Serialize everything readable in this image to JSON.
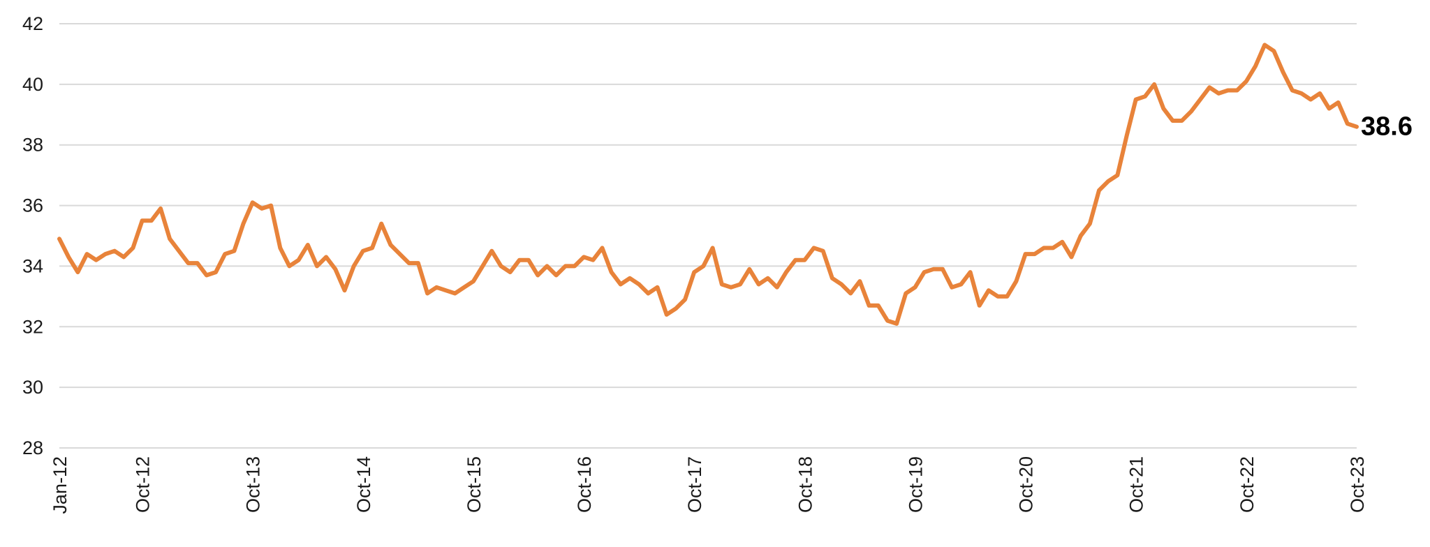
{
  "chart_data": {
    "type": "line",
    "title": "",
    "xlabel": "",
    "ylabel": "",
    "ylim": [
      28,
      42
    ],
    "y_ticks": [
      "28",
      "30",
      "32",
      "34",
      "36",
      "38",
      "40",
      "42"
    ],
    "x_tick_labels": [
      "Jan-12",
      "Oct-12",
      "Oct-13",
      "Oct-14",
      "Oct-15",
      "Oct-16",
      "Oct-17",
      "Oct-18",
      "Oct-19",
      "Oct-20",
      "Oct-21",
      "Oct-22",
      "Oct-23"
    ],
    "grid": true,
    "line_color": "#E8833A",
    "end_label": "38.6",
    "series": [
      {
        "name": "",
        "x_start": "Jan-12",
        "frequency": "monthly",
        "values": [
          34.9,
          34.3,
          33.8,
          34.4,
          34.2,
          34.4,
          34.5,
          34.3,
          34.6,
          35.5,
          35.5,
          35.9,
          34.9,
          34.5,
          34.1,
          34.1,
          33.7,
          33.8,
          34.4,
          34.5,
          35.4,
          36.1,
          35.9,
          36.0,
          34.6,
          34.0,
          34.2,
          34.7,
          34.0,
          34.3,
          33.9,
          33.2,
          34.0,
          34.5,
          34.6,
          35.4,
          34.7,
          34.4,
          34.1,
          34.1,
          33.1,
          33.3,
          33.2,
          33.1,
          33.3,
          33.5,
          34.0,
          34.5,
          34.0,
          33.8,
          34.2,
          34.2,
          33.7,
          34.0,
          33.7,
          34.0,
          34.0,
          34.3,
          34.2,
          34.6,
          33.8,
          33.4,
          33.6,
          33.4,
          33.1,
          33.3,
          32.4,
          32.6,
          32.9,
          33.8,
          34.0,
          34.6,
          33.4,
          33.3,
          33.4,
          33.9,
          33.4,
          33.6,
          33.3,
          33.8,
          34.2,
          34.2,
          34.6,
          34.5,
          33.6,
          33.4,
          33.1,
          33.5,
          32.7,
          32.7,
          32.2,
          32.1,
          33.1,
          33.3,
          33.8,
          33.9,
          33.9,
          33.3,
          33.4,
          33.8,
          32.7,
          33.2,
          33.0,
          33.0,
          33.5,
          34.4,
          34.4,
          34.6,
          34.6,
          34.8,
          34.3,
          35.0,
          35.4,
          36.5,
          36.8,
          37.0,
          38.3,
          39.5,
          39.6,
          40.0,
          39.2,
          38.8,
          38.8,
          39.1,
          39.5,
          39.9,
          39.7,
          39.8,
          39.8,
          40.1,
          40.6,
          41.3,
          41.1,
          40.4,
          39.8,
          39.7,
          39.5,
          39.7,
          39.2,
          39.4,
          38.7,
          38.6
        ]
      }
    ]
  }
}
